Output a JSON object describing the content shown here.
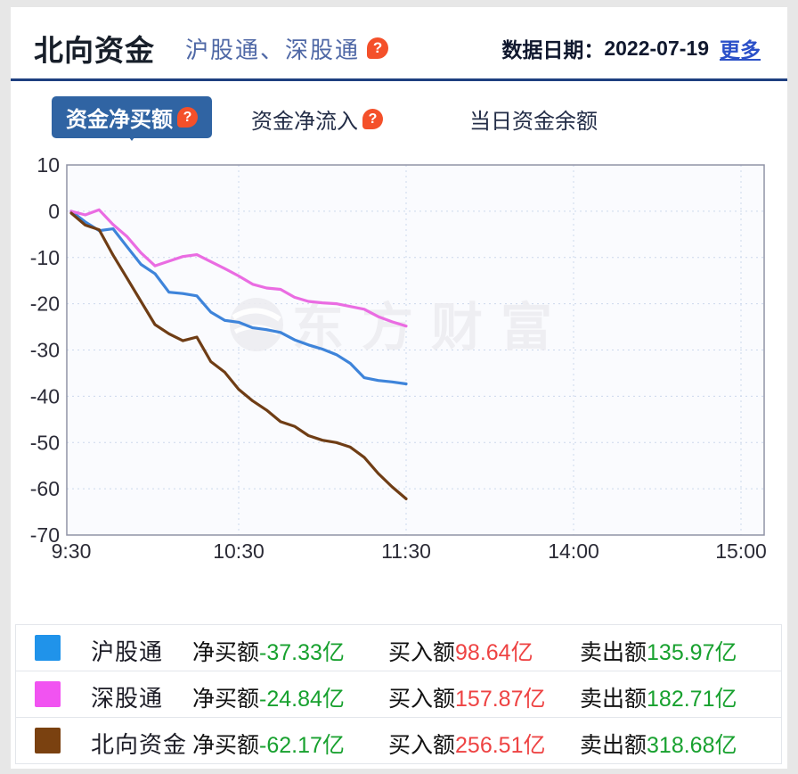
{
  "header": {
    "title": "北向资金",
    "subtitle": "沪股通、深股通",
    "help_icon": "question-mark-bubble",
    "date_label": "数据日期：",
    "date_value": "2022-07-19",
    "more_label": "更多"
  },
  "tabs": [
    {
      "label": "资金净买额",
      "active": true,
      "has_help": true
    },
    {
      "label": "资金净流入",
      "active": false,
      "has_help": true
    },
    {
      "label": "当日资金余额",
      "active": false,
      "has_help": false
    }
  ],
  "watermark": {
    "text": "东方财富"
  },
  "colors": {
    "divider": "#1e3f80",
    "active_tab_bg": "#3064a3",
    "help_badge": "#f4502a",
    "positive_red": "#ee4343",
    "negative_green": "#18a12f",
    "grid": "#ccd8ec",
    "plot_border": "#9094a6",
    "plot_bg": "#fafbfe",
    "watermark": "#ededf1"
  },
  "chart_data": {
    "type": "line",
    "title": "",
    "xlabel": "",
    "ylabel": "",
    "ylim": [
      -70,
      10
    ],
    "y_ticks": [
      10,
      0,
      -10,
      -20,
      -30,
      -40,
      -50,
      -60,
      -70
    ],
    "x_axis_ticks": [
      "9:30",
      "10:30",
      "11:30",
      "14:00",
      "15:00"
    ],
    "grid": true,
    "legend_position": "bottom-table",
    "x": [
      "9:30",
      "9:35",
      "9:40",
      "9:45",
      "9:50",
      "9:55",
      "10:00",
      "10:05",
      "10:10",
      "10:15",
      "10:20",
      "10:25",
      "10:30",
      "10:35",
      "10:40",
      "10:45",
      "10:50",
      "10:55",
      "11:00",
      "11:05",
      "11:10",
      "11:15",
      "11:20",
      "11:25",
      "11:30"
    ],
    "series": [
      {
        "key": "hugutong",
        "name": "沪股通",
        "color": "#3e84da",
        "values": [
          0,
          -2.3,
          -4.2,
          -3.8,
          -7.7,
          -11.5,
          -13.5,
          -17.5,
          -17.8,
          -18.3,
          -21.8,
          -23.6,
          -24,
          -25.2,
          -25.6,
          -26.2,
          -27.8,
          -28.9,
          -29.8,
          -31,
          -32.9,
          -36,
          -36.6,
          -36.9,
          -37.33
        ]
      },
      {
        "key": "shengutong",
        "name": "深股通",
        "color": "#ea6ce2",
        "values": [
          0,
          -0.8,
          0.3,
          -2.9,
          -5.5,
          -9,
          -11.8,
          -10.8,
          -9.8,
          -9.4,
          -10.9,
          -12.4,
          -14,
          -15.8,
          -16.6,
          -16.9,
          -18.6,
          -19.5,
          -19.8,
          -20,
          -20.6,
          -21.2,
          -22.8,
          -23.9,
          -24.84
        ]
      },
      {
        "key": "beixiang",
        "name": "北向资金",
        "color": "#6f3d15",
        "values": [
          -0.4,
          -3,
          -4,
          -9.5,
          -14.5,
          -19.5,
          -24.5,
          -26.5,
          -28,
          -27.2,
          -32.5,
          -34.8,
          -38.5,
          -41,
          -43,
          -45.5,
          -46.5,
          -48.5,
          -49.5,
          -50,
          -51,
          -53.2,
          -56.7,
          -59.6,
          -62.17
        ]
      }
    ]
  },
  "legend": {
    "rows": [
      {
        "name": "沪股通",
        "swatch_color": "#2093ea",
        "stats": [
          {
            "label": "净买额",
            "value": "-37.33亿",
            "tone": "green"
          },
          {
            "label": "买入额",
            "value": "98.64亿",
            "tone": "red"
          },
          {
            "label": "卖出额",
            "value": "135.97亿",
            "tone": "green"
          }
        ]
      },
      {
        "name": "深股通",
        "swatch_color": "#f153f1",
        "stats": [
          {
            "label": "净买额",
            "value": "-24.84亿",
            "tone": "green"
          },
          {
            "label": "买入额",
            "value": "157.87亿",
            "tone": "red"
          },
          {
            "label": "卖出额",
            "value": "182.71亿",
            "tone": "green"
          }
        ]
      },
      {
        "name": "北向资金",
        "swatch_color": "#7a4110",
        "stats": [
          {
            "label": "净买额",
            "value": "-62.17亿",
            "tone": "green"
          },
          {
            "label": "买入额",
            "value": "256.51亿",
            "tone": "red"
          },
          {
            "label": "卖出额",
            "value": "318.68亿",
            "tone": "green"
          }
        ]
      }
    ]
  }
}
